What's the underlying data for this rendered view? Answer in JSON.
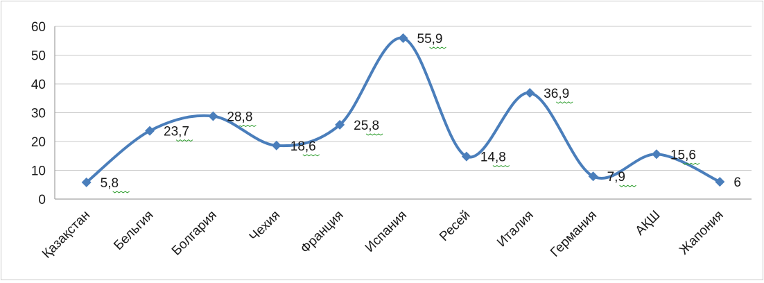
{
  "chart_data": {
    "type": "line",
    "title": "",
    "xlabel": "",
    "ylabel": "",
    "categories": [
      "Қазақстан",
      "Бельгия",
      "Болгария",
      "Чехия",
      "Франция",
      "Испания",
      "Ресей",
      "Италия",
      "Германия",
      "АҚШ",
      "Жапония"
    ],
    "series": [
      {
        "values": [
          5.8,
          23.7,
          28.8,
          18.6,
          25.8,
          55.9,
          14.8,
          36.9,
          7.9,
          15.6,
          6
        ],
        "labels": [
          "5,8",
          "23,7",
          "28,8",
          "18,6",
          "25,8",
          "55,9",
          "14,8",
          "36,9",
          "7,9",
          "15,6",
          "6"
        ]
      }
    ],
    "ylim": [
      0,
      60
    ],
    "yticks": [
      0,
      10,
      20,
      30,
      40,
      50,
      60
    ],
    "grid": true,
    "legend": "none",
    "smooth": true,
    "colors": {
      "line": "#4a7ebb",
      "grid": "#c8c8c8",
      "axis": "#8c8c8c",
      "squiggle": "#2e9e2e"
    }
  }
}
